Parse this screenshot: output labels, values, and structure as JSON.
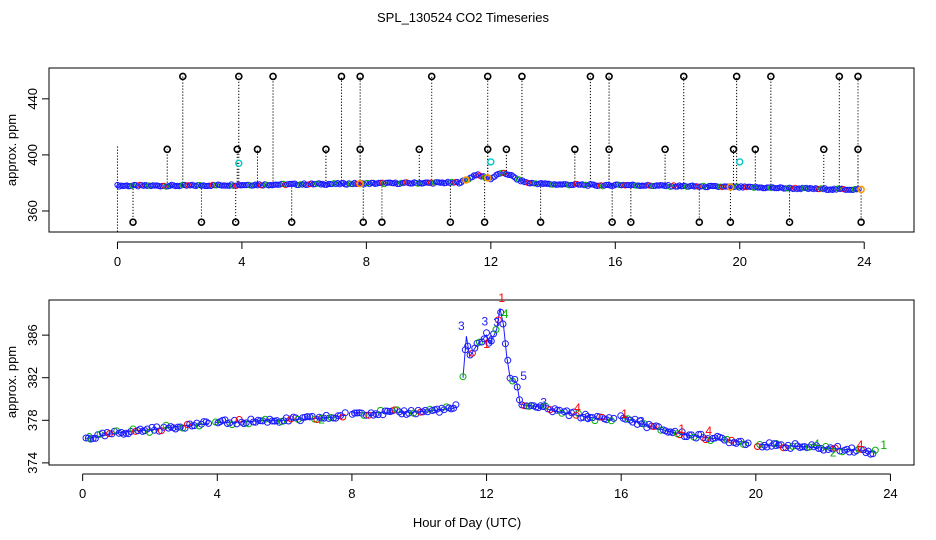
{
  "figure": {
    "title": "SPL_130524  CO2 Timeseries",
    "xlabel": "Hour of Day (UTC)"
  },
  "chart_data": [
    {
      "type": "scatter",
      "panel": "top",
      "ylabel": "approx. ppm",
      "xlim": [
        -2.2,
        25.6
      ],
      "ylim": [
        345,
        462
      ],
      "xticks": [
        0,
        4,
        8,
        12,
        16,
        20,
        24
      ],
      "yticks": [
        360,
        400,
        440
      ],
      "colors": {
        "main": "#1a1aff",
        "high": "#00c8c8",
        "flag": "#000000",
        "red": "#ff0000",
        "green": "#00b000",
        "orange": "#ff9900"
      },
      "baseline": [
        [
          0,
          378
        ],
        [
          1,
          378
        ],
        [
          2,
          378
        ],
        [
          3,
          378.3
        ],
        [
          4,
          378.6
        ],
        [
          5,
          378.8
        ],
        [
          6,
          379.1
        ],
        [
          7,
          379.3
        ],
        [
          8,
          379.6
        ],
        [
          9,
          379.8
        ],
        [
          10,
          380
        ],
        [
          11,
          380.3
        ],
        [
          11.3,
          383
        ],
        [
          11.5,
          386
        ],
        [
          12,
          383
        ],
        [
          12.3,
          387
        ],
        [
          12.6,
          386
        ],
        [
          12.9,
          382
        ],
        [
          13.2,
          380
        ],
        [
          14,
          379
        ],
        [
          15,
          378.6
        ],
        [
          15.8,
          378
        ],
        [
          16,
          378.7
        ],
        [
          17,
          378.2
        ],
        [
          18,
          377.7
        ],
        [
          19,
          377.4
        ],
        [
          20,
          377
        ],
        [
          21,
          376.5
        ],
        [
          22,
          376
        ],
        [
          23,
          375.5
        ],
        [
          23.8,
          375.4
        ]
      ],
      "high_points": [
        [
          3.9,
          394
        ],
        [
          12.0,
          395
        ],
        [
          20.0,
          395
        ]
      ],
      "flag_top": [
        2.1,
        3.9,
        5.0,
        7.2,
        7.8,
        10.1,
        11.9,
        13.0,
        15.2,
        15.8,
        18.2,
        19.9,
        21.0,
        23.2,
        23.8
      ],
      "flag_400": [
        1.6,
        3.85,
        4.5,
        6.7,
        7.8,
        9.7,
        11.9,
        12.5,
        14.7,
        15.8,
        17.6,
        19.8,
        20.5,
        22.7,
        23.8
      ],
      "flag_bottom": [
        0.5,
        2.7,
        3.8,
        5.6,
        7.9,
        8.5,
        10.7,
        11.8,
        13.6,
        15.9,
        16.5,
        18.7,
        19.7,
        21.6,
        23.9
      ],
      "flag_baseline": [
        7.8,
        11.2,
        11.9,
        19.7,
        23.9
      ]
    },
    {
      "type": "scatter",
      "panel": "bottom",
      "ylabel": "approx. ppm",
      "xlim": [
        -1.0,
        24.7
      ],
      "ylim": [
        373.8,
        389.3
      ],
      "xticks": [
        0,
        4,
        8,
        12,
        16,
        20,
        24
      ],
      "yticks": [
        374,
        378,
        382,
        386
      ],
      "colors": {
        "main": "#1a1aff",
        "red": "#ff0000",
        "green": "#00b000"
      },
      "series": [
        [
          0.1,
          376.3
        ],
        [
          0.5,
          376.5
        ],
        [
          1,
          376.8
        ],
        [
          1.5,
          377
        ],
        [
          2,
          377.1
        ],
        [
          2.5,
          377.3
        ],
        [
          3,
          377.5
        ],
        [
          3.5,
          377.6
        ],
        [
          3.8,
          377.7
        ],
        [
          4,
          377.8
        ],
        [
          4.5,
          377.8
        ],
        [
          5,
          377.9
        ],
        [
          5.5,
          378
        ],
        [
          6,
          378
        ],
        [
          6.5,
          378.1
        ],
        [
          7,
          378.2
        ],
        [
          7.5,
          378.3
        ],
        [
          7.8,
          378.5
        ],
        [
          8,
          378.7
        ],
        [
          9,
          378.7
        ],
        [
          10,
          378.8
        ],
        [
          11,
          379.1
        ],
        [
          11.15,
          379.4
        ],
        [
          11.3,
          382
        ],
        [
          11.4,
          385.9
        ],
        [
          11.5,
          384
        ],
        [
          11.7,
          385
        ],
        [
          12,
          386
        ],
        [
          12.1,
          385.2
        ],
        [
          12.3,
          386.5
        ],
        [
          12.4,
          388.5
        ],
        [
          12.5,
          387
        ],
        [
          12.6,
          384
        ],
        [
          12.7,
          382
        ],
        [
          12.9,
          381.5
        ],
        [
          13,
          379.5
        ],
        [
          13.5,
          379.3
        ],
        [
          14,
          378.9
        ],
        [
          14.5,
          378.6
        ],
        [
          15,
          378.3
        ],
        [
          15.5,
          378.1
        ],
        [
          15.8,
          378.1
        ],
        [
          16,
          378.3
        ],
        [
          16.5,
          377.8
        ],
        [
          17,
          377.3
        ],
        [
          17.5,
          376.9
        ],
        [
          18,
          376.6
        ],
        [
          18.5,
          376.4
        ],
        [
          19,
          376.2
        ],
        [
          19.5,
          376
        ],
        [
          20,
          375.8
        ],
        [
          20.5,
          375.6
        ],
        [
          21,
          375.6
        ],
        [
          21.5,
          375.5
        ],
        [
          22,
          375.4
        ],
        [
          22.5,
          375.3
        ],
        [
          23,
          375.2
        ],
        [
          23.6,
          375
        ]
      ],
      "gaps": [
        3.85,
        7.9,
        11.2,
        15.9,
        19.9
      ],
      "marker_labels": [
        {
          "x": 11.25,
          "y": 386.5,
          "label": "3",
          "color": "#1a1aff"
        },
        {
          "x": 11.95,
          "y": 386.9,
          "label": "3",
          "color": "#1a1aff"
        },
        {
          "x": 12.3,
          "y": 386.8,
          "label": "3",
          "color": "#1a1aff"
        },
        {
          "x": 12.45,
          "y": 389.1,
          "label": "1",
          "color": "#ff0000"
        },
        {
          "x": 12.1,
          "y": 385.2,
          "label": "4",
          "color": "#1a1aff"
        },
        {
          "x": 12.55,
          "y": 387.6,
          "label": "4",
          "color": "#00b000"
        },
        {
          "x": 13.1,
          "y": 381.8,
          "label": "5",
          "color": "#1a1aff"
        },
        {
          "x": 13.7,
          "y": 379.3,
          "label": "3",
          "color": "#1a1aff"
        },
        {
          "x": 14.7,
          "y": 378.8,
          "label": "4",
          "color": "#ff0000"
        },
        {
          "x": 15.0,
          "y": 377.9,
          "label": "3",
          "color": "#1a1aff"
        },
        {
          "x": 16.1,
          "y": 378.2,
          "label": "1",
          "color": "#ff0000"
        },
        {
          "x": 16.6,
          "y": 377.5,
          "label": "3",
          "color": "#1a1aff"
        },
        {
          "x": 17.8,
          "y": 376.8,
          "label": "1",
          "color": "#ff0000"
        },
        {
          "x": 18.6,
          "y": 376.6,
          "label": "4",
          "color": "#ff0000"
        },
        {
          "x": 20.6,
          "y": 375.3,
          "label": "3",
          "color": "#1a1aff"
        },
        {
          "x": 21.8,
          "y": 375.4,
          "label": "4",
          "color": "#00b000"
        },
        {
          "x": 22.3,
          "y": 374.6,
          "label": "2",
          "color": "#00b000"
        },
        {
          "x": 23.1,
          "y": 375.3,
          "label": "4",
          "color": "#ff0000"
        },
        {
          "x": 23.8,
          "y": 375.3,
          "label": "1",
          "color": "#00b000"
        },
        {
          "x": 0.2,
          "y": 376.0,
          "label": "2",
          "color": "#00b000"
        },
        {
          "x": 7.1,
          "y": 377.7,
          "label": "2",
          "color": "#00b000"
        },
        {
          "x": 12.0,
          "y": 384.8,
          "label": "1",
          "color": "#ff0000"
        }
      ]
    }
  ]
}
